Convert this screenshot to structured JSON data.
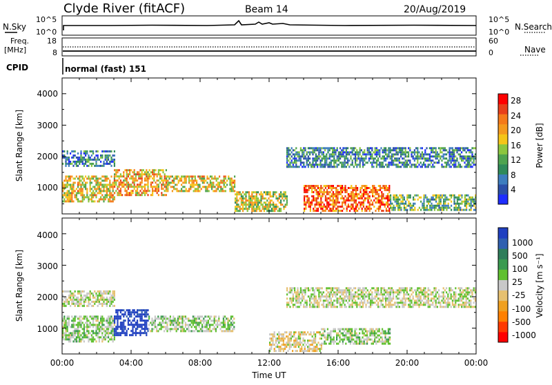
{
  "header": {
    "station": "Clyde River (fitACF)",
    "beam": "Beam 14",
    "date": "20/Aug/2019"
  },
  "noise_panel": {
    "left_label": "N.Sky",
    "right_label": "N.Search",
    "left_ticks": [
      "10^5",
      "10^0"
    ],
    "right_ticks": [
      "10^5",
      "10^0"
    ]
  },
  "freq_panel": {
    "left_label_line1": "Freq.",
    "left_label_line2": "[MHz]",
    "right_label": "Nave",
    "left_ticks": [
      "18",
      "8"
    ],
    "right_ticks": [
      "60",
      "0"
    ]
  },
  "cpid_panel": {
    "label": "CPID",
    "mode": "normal (fast) 151"
  },
  "power_panel": {
    "ylabel": "Slant Range [km]",
    "yticks": [
      "4000",
      "3000",
      "2000",
      "1000"
    ],
    "colorbar_label": "Power [dB]",
    "colorbar_ticks": [
      "28",
      "24",
      "20",
      "16",
      "12",
      "8",
      "4"
    ]
  },
  "velocity_panel": {
    "ylabel": "Slant Range [km]",
    "yticks": [
      "4000",
      "3000",
      "2000",
      "1000"
    ],
    "colorbar_label": "Velocity [m s⁻¹]",
    "colorbar_ticks": [
      "1000",
      "500",
      "100",
      "25",
      "-25",
      "-100",
      "-500",
      "-1000"
    ]
  },
  "xaxis": {
    "label": "Time UT",
    "ticks": [
      "00:00",
      "04:00",
      "08:00",
      "12:00",
      "16:00",
      "20:00",
      "00:00"
    ]
  },
  "colors": {
    "power_scale": [
      "#1e2dff",
      "#2b4fa8",
      "#3d7dbe",
      "#2f8a5a",
      "#4ea34f",
      "#8cc63e",
      "#f5c518",
      "#f59a1e",
      "#f57a1a",
      "#e8401a",
      "#ff0000"
    ],
    "velocity_scale": [
      "#ff0000",
      "#ff3a00",
      "#ff8000",
      "#f0a020",
      "#e6c070",
      "#c8c8c8",
      "#60c030",
      "#3a9a50",
      "#2e7d5a",
      "#3060b0",
      "#2040c0"
    ]
  },
  "chart_data": [
    {
      "type": "heatmap",
      "title": "Power",
      "xlabel": "Time UT",
      "ylabel": "Slant Range [km]",
      "xlim": [
        "00:00",
        "00:00"
      ],
      "ylim": [
        180,
        4500
      ],
      "colorbar": {
        "label": "Power [dB]",
        "range": [
          0,
          30
        ]
      },
      "regions": [
        {
          "t_start": "00:00",
          "t_end": "03:00",
          "range_km": [
            600,
            1400
          ],
          "power_db": 18
        },
        {
          "t_start": "03:00",
          "t_end": "06:00",
          "range_km": [
            800,
            1600
          ],
          "power_db": 20
        },
        {
          "t_start": "06:00",
          "t_end": "10:00",
          "range_km": [
            900,
            1400
          ],
          "power_db": 18
        },
        {
          "t_start": "10:00",
          "t_end": "13:00",
          "range_km": [
            300,
            900
          ],
          "power_db": 16
        },
        {
          "t_start": "14:00",
          "t_end": "19:00",
          "range_km": [
            300,
            1100
          ],
          "power_db": 24
        },
        {
          "t_start": "19:00",
          "t_end": "00:00",
          "range_km": [
            300,
            800
          ],
          "power_db": 12
        },
        {
          "t_start": "00:00",
          "t_end": "03:00",
          "range_km": [
            1700,
            2200
          ],
          "power_db": 8
        },
        {
          "t_start": "13:00",
          "t_end": "00:00",
          "range_km": [
            1700,
            2300
          ],
          "power_db": 8
        }
      ]
    },
    {
      "type": "heatmap",
      "title": "Velocity",
      "xlabel": "Time UT",
      "ylabel": "Slant Range [km]",
      "xlim": [
        "00:00",
        "00:00"
      ],
      "ylim": [
        180,
        4500
      ],
      "colorbar": {
        "label": "Velocity [m s⁻¹]",
        "range": [
          -1000,
          1000
        ]
      },
      "regions": [
        {
          "t_start": "00:00",
          "t_end": "03:00",
          "range_km": [
            600,
            1400
          ],
          "velocity_ms": 100
        },
        {
          "t_start": "03:00",
          "t_end": "05:00",
          "range_km": [
            800,
            1600
          ],
          "velocity_ms": 1000
        },
        {
          "t_start": "05:00",
          "t_end": "10:00",
          "range_km": [
            900,
            1400
          ],
          "velocity_ms": 100
        },
        {
          "t_start": "12:00",
          "t_end": "15:00",
          "range_km": [
            300,
            900
          ],
          "velocity_ms": -100
        },
        {
          "t_start": "15:00",
          "t_end": "19:00",
          "range_km": [
            500,
            1000
          ],
          "velocity_ms": 100
        },
        {
          "t_start": "00:00",
          "t_end": "03:00",
          "range_km": [
            1700,
            2200
          ],
          "velocity_ms": 0
        },
        {
          "t_start": "13:00",
          "t_end": "00:00",
          "range_km": [
            1700,
            2300
          ],
          "velocity_ms": 0
        }
      ]
    }
  ]
}
